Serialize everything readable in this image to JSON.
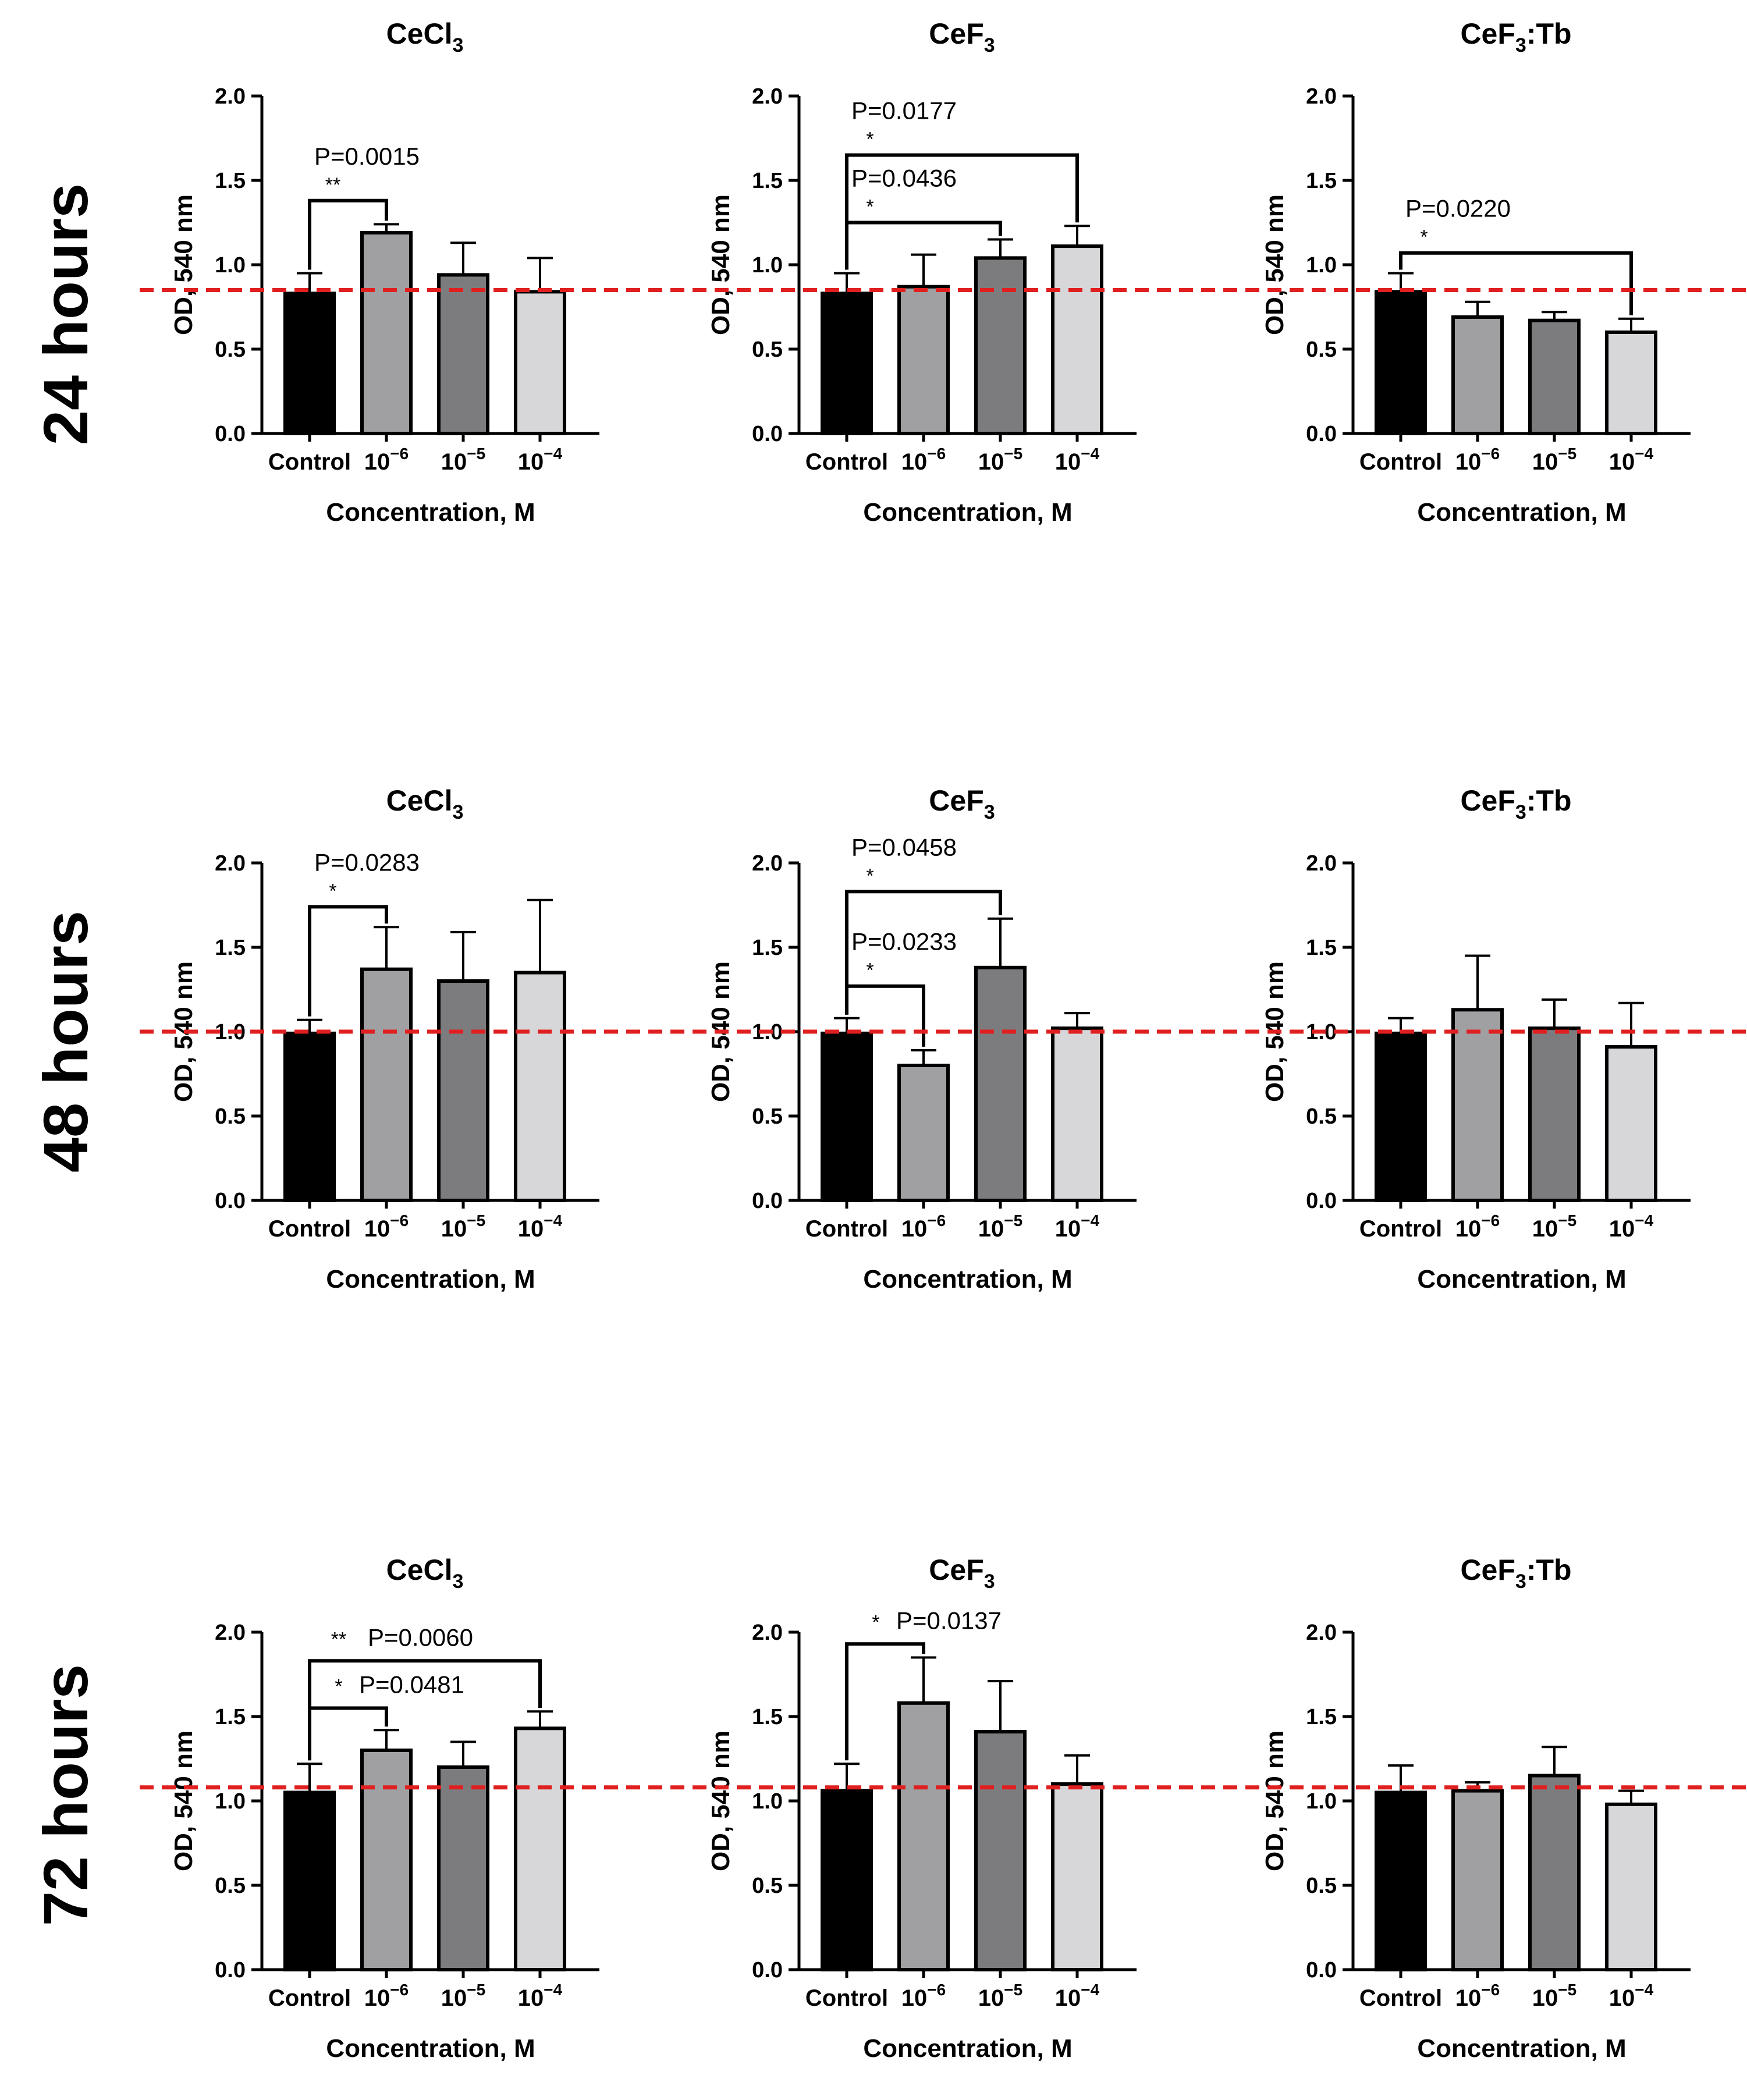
{
  "figure": {
    "rows": [
      {
        "label": "24 hours",
        "reference_line": 0.85
      },
      {
        "label": "48 hours",
        "reference_line": 1.0
      },
      {
        "label": "72 hours",
        "reference_line": 1.08
      }
    ],
    "colors": {
      "bars": [
        "#000000",
        "#a0a0a3",
        "#7c7c7f",
        "#d7d7d9"
      ],
      "reference_line": "#e02020",
      "axis": "#000000"
    }
  },
  "chart_data": [
    {
      "type": "bar",
      "row": 0,
      "col": 0,
      "title": "CeCl",
      "title_sub": "3",
      "title_suffix": "",
      "xlabel": "Concentration, M",
      "ylabel": "OD, 540 nm",
      "categories": [
        "Control",
        "10",
        "10",
        "10"
      ],
      "category_exponents": [
        "",
        "−6",
        "−5",
        "−4"
      ],
      "values": [
        0.83,
        1.19,
        0.94,
        0.84
      ],
      "errors": [
        0.12,
        0.05,
        0.19,
        0.2
      ],
      "ylim": [
        0,
        2
      ],
      "yticks": [
        "0.0",
        "0.5",
        "1.0",
        "1.5",
        "2.0"
      ],
      "annotations": [
        {
          "from": 0,
          "to": 1,
          "p": "P=0.0015",
          "stars": "**",
          "level": 1.38,
          "style": "above"
        }
      ]
    },
    {
      "type": "bar",
      "row": 0,
      "col": 1,
      "title": "CeF",
      "title_sub": "3",
      "title_suffix": "",
      "xlabel": "Concentration, M",
      "ylabel": "OD, 540 nm",
      "categories": [
        "Control",
        "10",
        "10",
        "10"
      ],
      "category_exponents": [
        "",
        "−6",
        "−5",
        "−4"
      ],
      "values": [
        0.83,
        0.87,
        1.04,
        1.11
      ],
      "errors": [
        0.12,
        0.19,
        0.11,
        0.12
      ],
      "ylim": [
        0,
        2
      ],
      "yticks": [
        "0.0",
        "0.5",
        "1.0",
        "1.5",
        "2.0"
      ],
      "annotations": [
        {
          "from": 0,
          "to": 3,
          "p": "P=0.0177",
          "stars": "*",
          "level": 1.65,
          "style": "above"
        },
        {
          "from": 0,
          "to": 2,
          "p": "P=0.0436",
          "stars": "*",
          "level": 1.25,
          "style": "above"
        }
      ]
    },
    {
      "type": "bar",
      "row": 0,
      "col": 2,
      "title": "CeF",
      "title_sub": "3",
      "title_suffix": ":Tb",
      "xlabel": "Concentration, M",
      "ylabel": "OD, 540 nm",
      "categories": [
        "Control",
        "10",
        "10",
        "10"
      ],
      "category_exponents": [
        "",
        "−6",
        "−5",
        "−4"
      ],
      "values": [
        0.84,
        0.69,
        0.67,
        0.6
      ],
      "errors": [
        0.11,
        0.09,
        0.05,
        0.08
      ],
      "ylim": [
        0,
        2
      ],
      "yticks": [
        "0.0",
        "0.5",
        "1.0",
        "1.5",
        "2.0"
      ],
      "annotations": [
        {
          "from": 0,
          "to": 3,
          "p": "P=0.0220",
          "stars": "*",
          "level": 1.07,
          "style": "above"
        }
      ]
    },
    {
      "type": "bar",
      "row": 1,
      "col": 0,
      "title": "CeCl",
      "title_sub": "3",
      "title_suffix": "",
      "xlabel": "Concentration, M",
      "ylabel": "OD, 540 nm",
      "categories": [
        "Control",
        "10",
        "10",
        "10"
      ],
      "category_exponents": [
        "",
        "−6",
        "−5",
        "−4"
      ],
      "values": [
        0.99,
        1.37,
        1.3,
        1.35
      ],
      "errors": [
        0.08,
        0.25,
        0.29,
        0.43
      ],
      "ylim": [
        0,
        2
      ],
      "yticks": [
        "0.0",
        "0.5",
        "1.0",
        "1.5",
        "2.0"
      ],
      "annotations": [
        {
          "from": 0,
          "to": 1,
          "p": "P=0.0283",
          "stars": "*",
          "level": 1.74,
          "style": "above"
        }
      ]
    },
    {
      "type": "bar",
      "row": 1,
      "col": 1,
      "title": "CeF",
      "title_sub": "3",
      "title_suffix": "",
      "xlabel": "Concentration, M",
      "ylabel": "OD, 540 nm",
      "categories": [
        "Control",
        "10",
        "10",
        "10"
      ],
      "category_exponents": [
        "",
        "−6",
        "−5",
        "−4"
      ],
      "values": [
        0.99,
        0.8,
        1.38,
        1.02
      ],
      "errors": [
        0.09,
        0.09,
        0.29,
        0.09
      ],
      "ylim": [
        0,
        2
      ],
      "yticks": [
        "0.0",
        "0.5",
        "1.0",
        "1.5",
        "2.0"
      ],
      "annotations": [
        {
          "from": 0,
          "to": 2,
          "p": "P=0.0458",
          "stars": "*",
          "level": 1.83,
          "style": "above"
        },
        {
          "from": 0,
          "to": 1,
          "p": "P=0.0233",
          "stars": "*",
          "level": 1.27,
          "style": "above"
        }
      ]
    },
    {
      "type": "bar",
      "row": 1,
      "col": 2,
      "title": "CeF",
      "title_sub": "3",
      "title_suffix": ":Tb",
      "xlabel": "Concentration, M",
      "ylabel": "OD, 540 nm",
      "categories": [
        "Control",
        "10",
        "10",
        "10"
      ],
      "category_exponents": [
        "",
        "−6",
        "−5",
        "−4"
      ],
      "values": [
        0.99,
        1.13,
        1.02,
        0.91
      ],
      "errors": [
        0.09,
        0.32,
        0.17,
        0.26
      ],
      "ylim": [
        0,
        2
      ],
      "yticks": [
        "0.0",
        "0.5",
        "1.0",
        "1.5",
        "2.0"
      ],
      "annotations": []
    },
    {
      "type": "bar",
      "row": 2,
      "col": 0,
      "title": "CeCl",
      "title_sub": "3",
      "title_suffix": "",
      "xlabel": "Concentration, M",
      "ylabel": "OD, 540 nm",
      "categories": [
        "Control",
        "10",
        "10",
        "10"
      ],
      "category_exponents": [
        "",
        "−6",
        "−5",
        "−4"
      ],
      "values": [
        1.05,
        1.3,
        1.2,
        1.43
      ],
      "errors": [
        0.17,
        0.12,
        0.15,
        0.1
      ],
      "ylim": [
        0,
        2
      ],
      "yticks": [
        "0.0",
        "0.5",
        "1.0",
        "1.5",
        "2.0"
      ],
      "annotations": [
        {
          "from": 0,
          "to": 3,
          "p": "P=0.0060",
          "stars": "**",
          "level": 1.83,
          "style": "beside"
        },
        {
          "from": 0,
          "to": 1,
          "p": "P=0.0481",
          "stars": "*",
          "level": 1.55,
          "style": "beside"
        }
      ]
    },
    {
      "type": "bar",
      "row": 2,
      "col": 1,
      "title": "CeF",
      "title_sub": "3",
      "title_suffix": "",
      "xlabel": "Concentration, M",
      "ylabel": "OD, 540 nm",
      "categories": [
        "Control",
        "10",
        "10",
        "10"
      ],
      "category_exponents": [
        "",
        "−6",
        "−5",
        "−4"
      ],
      "values": [
        1.06,
        1.58,
        1.41,
        1.1
      ],
      "errors": [
        0.16,
        0.27,
        0.3,
        0.17
      ],
      "ylim": [
        0,
        2
      ],
      "yticks": [
        "0.0",
        "0.5",
        "1.0",
        "1.5",
        "2.0"
      ],
      "annotations": [
        {
          "from": 0,
          "to": 1,
          "p": "P=0.0137",
          "stars": "*",
          "level": 1.93,
          "style": "beside"
        }
      ]
    },
    {
      "type": "bar",
      "row": 2,
      "col": 2,
      "title": "CeF",
      "title_sub": "3",
      "title_suffix": ":Tb",
      "xlabel": "Concentration, M",
      "ylabel": "OD, 540 nm",
      "categories": [
        "Control",
        "10",
        "10",
        "10"
      ],
      "category_exponents": [
        "",
        "−6",
        "−5",
        "−4"
      ],
      "values": [
        1.05,
        1.06,
        1.15,
        0.98
      ],
      "errors": [
        0.16,
        0.05,
        0.17,
        0.08
      ],
      "ylim": [
        0,
        2
      ],
      "yticks": [
        "0.0",
        "0.5",
        "1.0",
        "1.5",
        "2.0"
      ],
      "annotations": []
    }
  ]
}
